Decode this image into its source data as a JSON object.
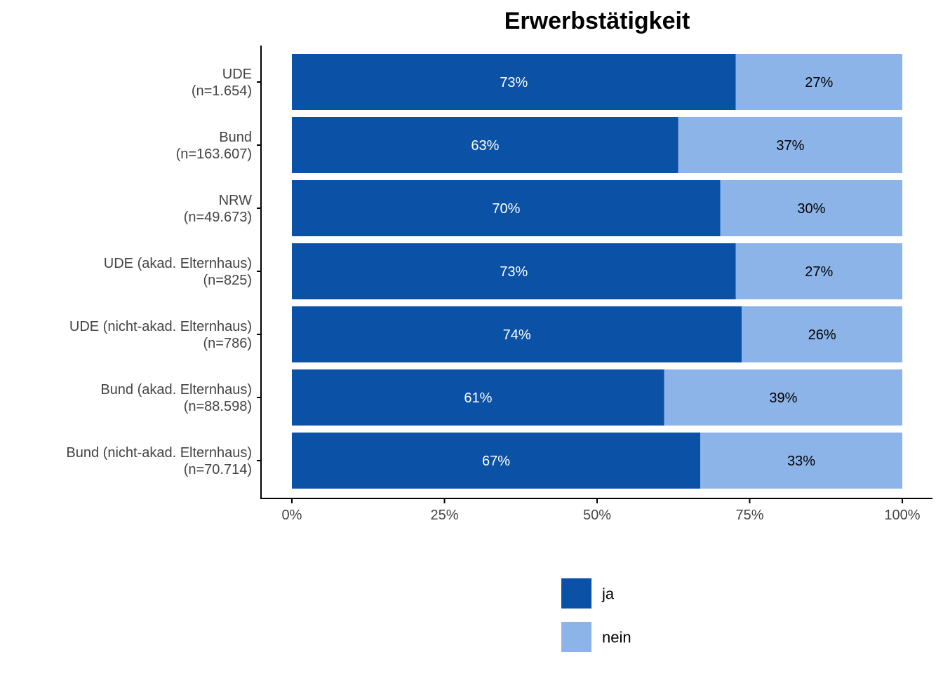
{
  "chart_data": {
    "type": "bar",
    "orientation": "horizontal",
    "stacked": true,
    "title": "Erwerbstätigkeit",
    "xlabel": "",
    "ylabel": "",
    "xlim": [
      0,
      100
    ],
    "x_ticks": [
      "0%",
      "25%",
      "50%",
      "75%",
      "100%"
    ],
    "x_tick_values": [
      0,
      25,
      50,
      75,
      100
    ],
    "grid": false,
    "legend_position": "bottom",
    "categories": [
      {
        "line1": "UDE",
        "line2": "(n=1.654)"
      },
      {
        "line1": "Bund",
        "line2": "(n=163.607)"
      },
      {
        "line1": "NRW",
        "line2": "(n=49.673)"
      },
      {
        "line1": "UDE (akad. Elternhaus)",
        "line2": "(n=825)"
      },
      {
        "line1": "UDE (nicht-akad. Elternhaus)",
        "line2": "(n=786)"
      },
      {
        "line1": "Bund (akad. Elternhaus)",
        "line2": "(n=88.598)"
      },
      {
        "line1": "Bund (nicht-akad. Elternhaus)",
        "line2": "(n=70.714)"
      }
    ],
    "series": [
      {
        "name": "ja",
        "color": "#0B51A6",
        "label_color": "#ffffff",
        "values": [
          72.7,
          63.3,
          70.2,
          72.7,
          73.7,
          61.0,
          66.9
        ],
        "labels": [
          "73%",
          "63%",
          "70%",
          "73%",
          "74%",
          "61%",
          "67%"
        ]
      },
      {
        "name": "nein",
        "color": "#8DB4E8",
        "label_color": "#000000",
        "values": [
          27.3,
          36.7,
          29.8,
          27.3,
          26.3,
          39.0,
          33.1
        ],
        "labels": [
          "27%",
          "37%",
          "30%",
          "27%",
          "26%",
          "39%",
          "33%"
        ]
      }
    ]
  }
}
